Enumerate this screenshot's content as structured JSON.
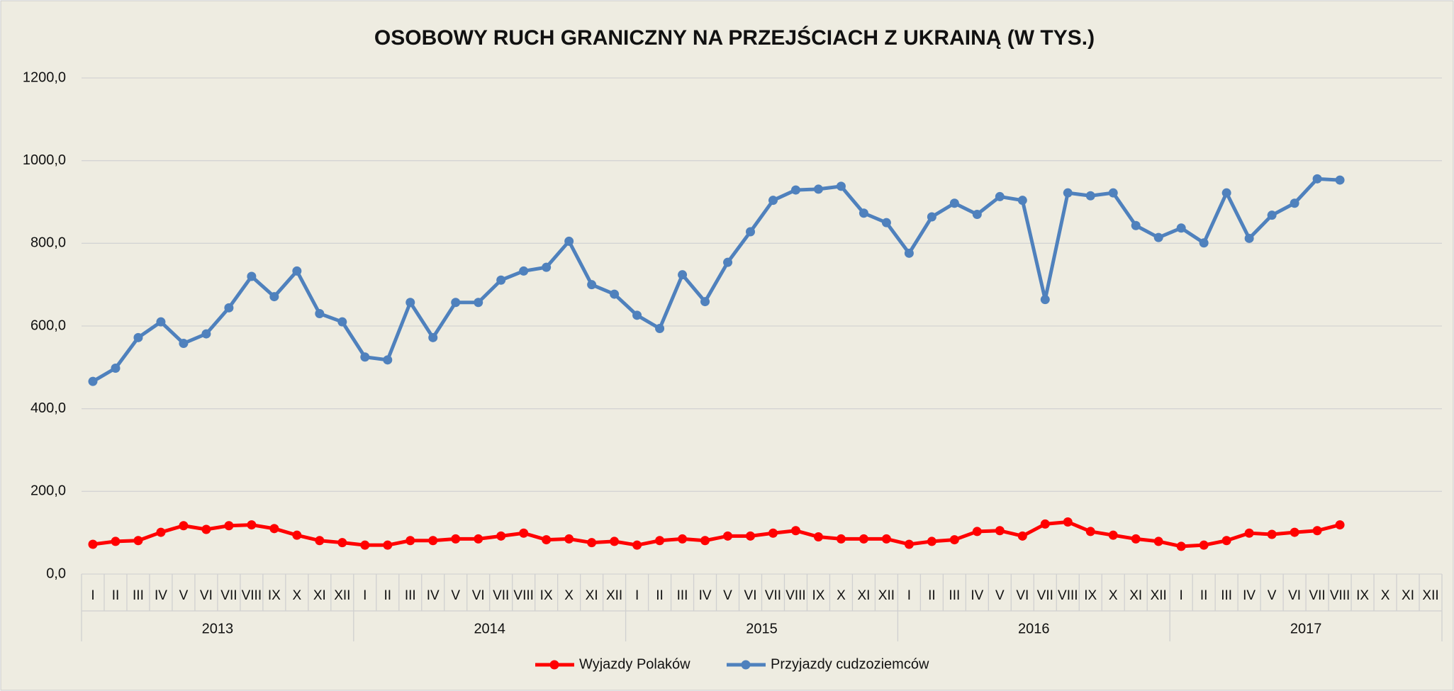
{
  "chart_data": {
    "type": "line",
    "title": "OSOBOWY RUCH GRANICZNY NA PRZEJŚCIACH Z UKRAINĄ (W TYS.)",
    "categories": [
      "I",
      "II",
      "III",
      "IV",
      "V",
      "VI",
      "VII",
      "VIII",
      "IX",
      "X",
      "XI",
      "XII",
      "I",
      "II",
      "III",
      "IV",
      "V",
      "VI",
      "VII",
      "VIII",
      "IX",
      "X",
      "XI",
      "XII",
      "I",
      "II",
      "III",
      "IV",
      "V",
      "VI",
      "VII",
      "VIII",
      "IX",
      "X",
      "XI",
      "XII",
      "I",
      "II",
      "III",
      "IV",
      "V",
      "VI",
      "VII",
      "VIII",
      "IX",
      "X",
      "XI",
      "XII",
      "I",
      "II",
      "III",
      "IV",
      "V",
      "VI",
      "VII",
      "VIII",
      "IX",
      "X",
      "XI",
      "XII"
    ],
    "years": [
      "2013",
      "2014",
      "2015",
      "2016",
      "2017"
    ],
    "series": [
      {
        "name": "Wyjazdy Polaków",
        "color": "#ff0000",
        "values": [
          72,
          79,
          81,
          101,
          117,
          108,
          117,
          119,
          110,
          94,
          81,
          76,
          70,
          70,
          81,
          81,
          85,
          85,
          92,
          99,
          83,
          85,
          76,
          79,
          70,
          81,
          85,
          81,
          92,
          92,
          99,
          105,
          90,
          85,
          85,
          85,
          72,
          79,
          83,
          103,
          105,
          92,
          121,
          126,
          103,
          94,
          85,
          79,
          67,
          70,
          81,
          99,
          96,
          101,
          105,
          119,
          null,
          null,
          null,
          null
        ]
      },
      {
        "name": "Przyjazdy cudzoziemców",
        "color": "#4f81bd",
        "values": [
          466,
          498,
          572,
          610,
          558,
          581,
          644,
          720,
          671,
          733,
          630,
          610,
          525,
          518,
          657,
          572,
          657,
          657,
          711,
          733,
          742,
          805,
          700,
          677,
          626,
          594,
          724,
          659,
          754,
          828,
          904,
          929,
          931,
          938,
          873,
          850,
          776,
          864,
          897,
          870,
          913,
          904,
          664,
          922,
          915,
          922,
          843,
          814,
          837,
          801,
          922,
          812,
          868,
          897,
          956,
          953,
          null,
          null,
          null,
          null
        ]
      }
    ],
    "ylim": [
      0,
      1200
    ],
    "yticks": [
      {
        "value": 0,
        "label": "0,0"
      },
      {
        "value": 200,
        "label": "200,0"
      },
      {
        "value": 400,
        "label": "400,0"
      },
      {
        "value": 600,
        "label": "600,0"
      },
      {
        "value": 800,
        "label": "800,0"
      },
      {
        "value": 1000,
        "label": "1000,0"
      },
      {
        "value": 1200,
        "label": "1200,0"
      }
    ],
    "grid": true,
    "legend": "bottom"
  }
}
